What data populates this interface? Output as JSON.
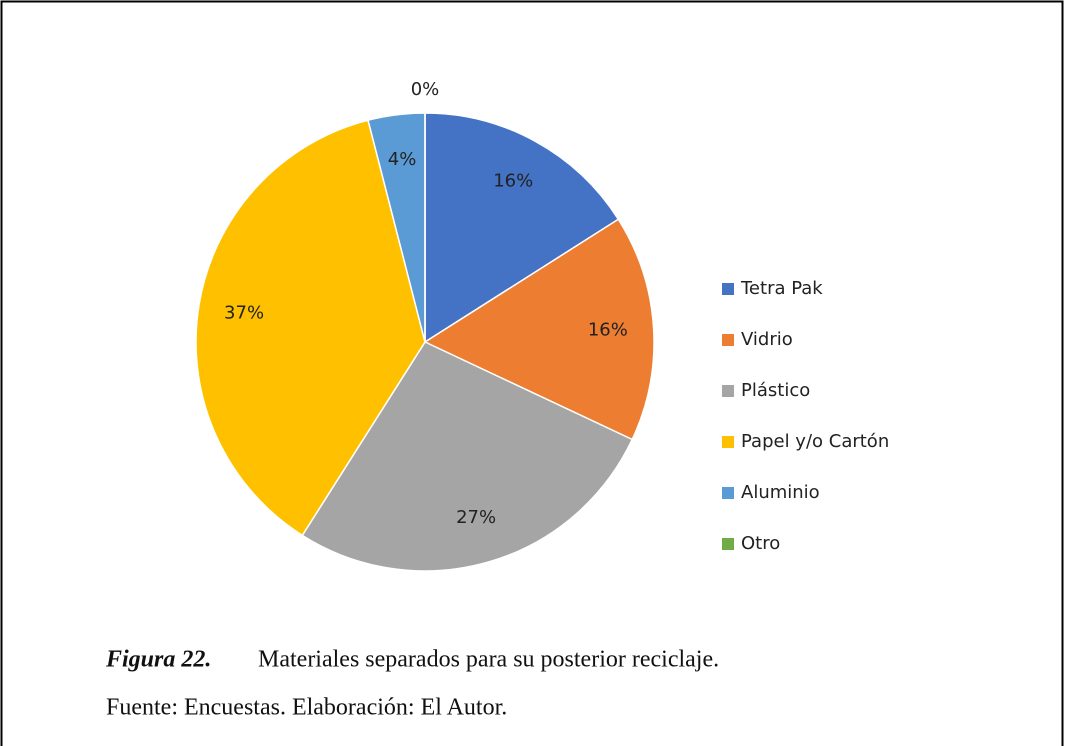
{
  "chart_data": {
    "type": "pie",
    "categories": [
      "Tetra Pak",
      "Vidrio",
      "Plástico",
      "Papel y/o Cartón",
      "Aluminio",
      "Otro"
    ],
    "values": [
      16,
      16,
      27,
      37,
      4,
      0
    ],
    "value_labels": [
      "16%",
      "16%",
      "27%",
      "37%",
      "4%",
      "0%"
    ],
    "colors": [
      "#4472c4",
      "#ed7d31",
      "#a5a5a5",
      "#ffc000",
      "#5b9bd5",
      "#70ad47"
    ],
    "legend": "right"
  },
  "caption": {
    "label": "Figura 22.",
    "text": "Materiales separados para su posterior reciclaje."
  },
  "source": "Fuente: Encuestas. Elaboración: El Autor."
}
